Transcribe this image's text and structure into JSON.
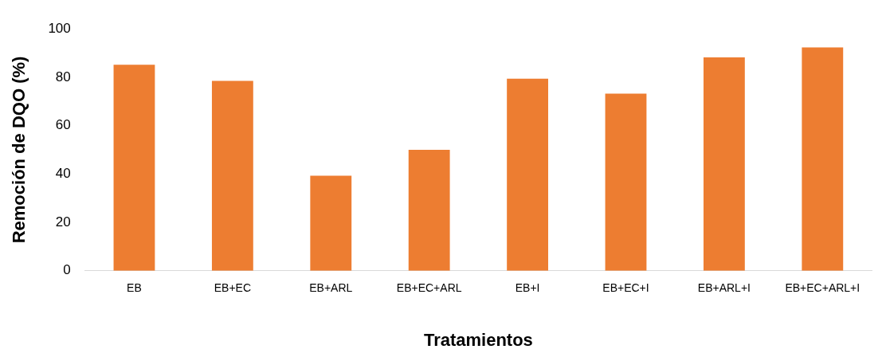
{
  "chart_data": {
    "type": "bar",
    "xlabel": "Tratamientos",
    "ylabel": "Remoción de DQO (%)",
    "categories": [
      "EB",
      "EB+EC",
      "EB+ARL",
      "EB+EC+ARL",
      "EB+I",
      "EB+EC+I",
      "EB+ARL+I",
      "EB+EC+ARL+I"
    ],
    "values": [
      85.2,
      78.5,
      39.3,
      50,
      79.4,
      73.2,
      88.2,
      92.3
    ],
    "color": "#ed7d31",
    "ylim": [
      0,
      100
    ],
    "yticks": [
      0,
      20,
      40,
      60,
      80,
      100
    ],
    "grid": false,
    "legend": false
  }
}
